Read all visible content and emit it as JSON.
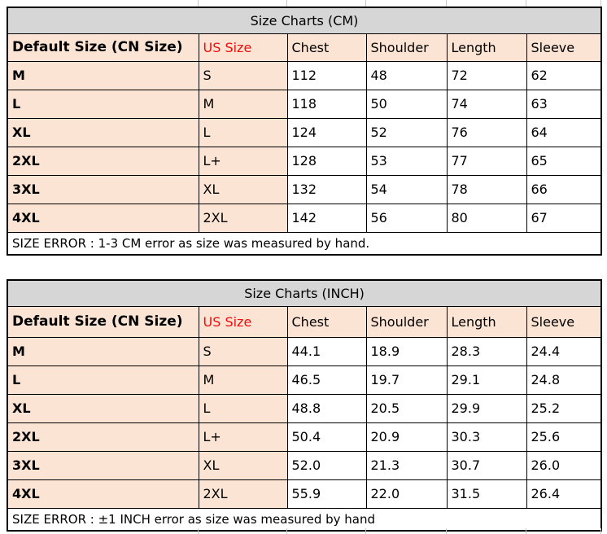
{
  "colors": {
    "title_bg": "#d6d6d6",
    "header_bg": "#fce4d4",
    "us_size_red": "#ee0c0c",
    "border": "#000000",
    "cell_bg": "#ffffff"
  },
  "tables": [
    {
      "title": "Size Charts (CM)",
      "columns": [
        "Default Size (CN Size)",
        "US Size",
        "Chest",
        "Shoulder",
        "Length",
        "Sleeve"
      ],
      "rows": [
        [
          "M",
          "S",
          "112",
          "48",
          "72",
          "62"
        ],
        [
          "L",
          "M",
          "118",
          "50",
          "74",
          "63"
        ],
        [
          "XL",
          "L",
          "124",
          "52",
          "76",
          "64"
        ],
        [
          "2XL",
          "L+",
          "128",
          "53",
          "77",
          "65"
        ],
        [
          "3XL",
          "XL",
          "132",
          "54",
          "78",
          "66"
        ],
        [
          "4XL",
          "2XL",
          "142",
          "56",
          "80",
          "67"
        ]
      ],
      "footer": "SIZE ERROR : 1-3 CM error as size was measured by hand."
    },
    {
      "title": "Size Charts (INCH)",
      "columns": [
        "Default Size (CN Size)",
        "US Size",
        "Chest",
        "Shoulder",
        "Length",
        "Sleeve"
      ],
      "rows": [
        [
          "M",
          "S",
          "44.1",
          "18.9",
          "28.3",
          "24.4"
        ],
        [
          "L",
          "M",
          "46.5",
          "19.7",
          "29.1",
          "24.8"
        ],
        [
          "XL",
          "L",
          "48.8",
          "20.5",
          "29.9",
          "25.2"
        ],
        [
          "2XL",
          "L+",
          "50.4",
          "20.9",
          "30.3",
          "25.6"
        ],
        [
          "3XL",
          "XL",
          "52.0",
          "21.3",
          "30.7",
          "26.0"
        ],
        [
          "4XL",
          "2XL",
          "55.9",
          "22.0",
          "31.5",
          "26.4"
        ]
      ],
      "footer": "SIZE ERROR : ±1 INCH error as size was measured by hand"
    }
  ]
}
